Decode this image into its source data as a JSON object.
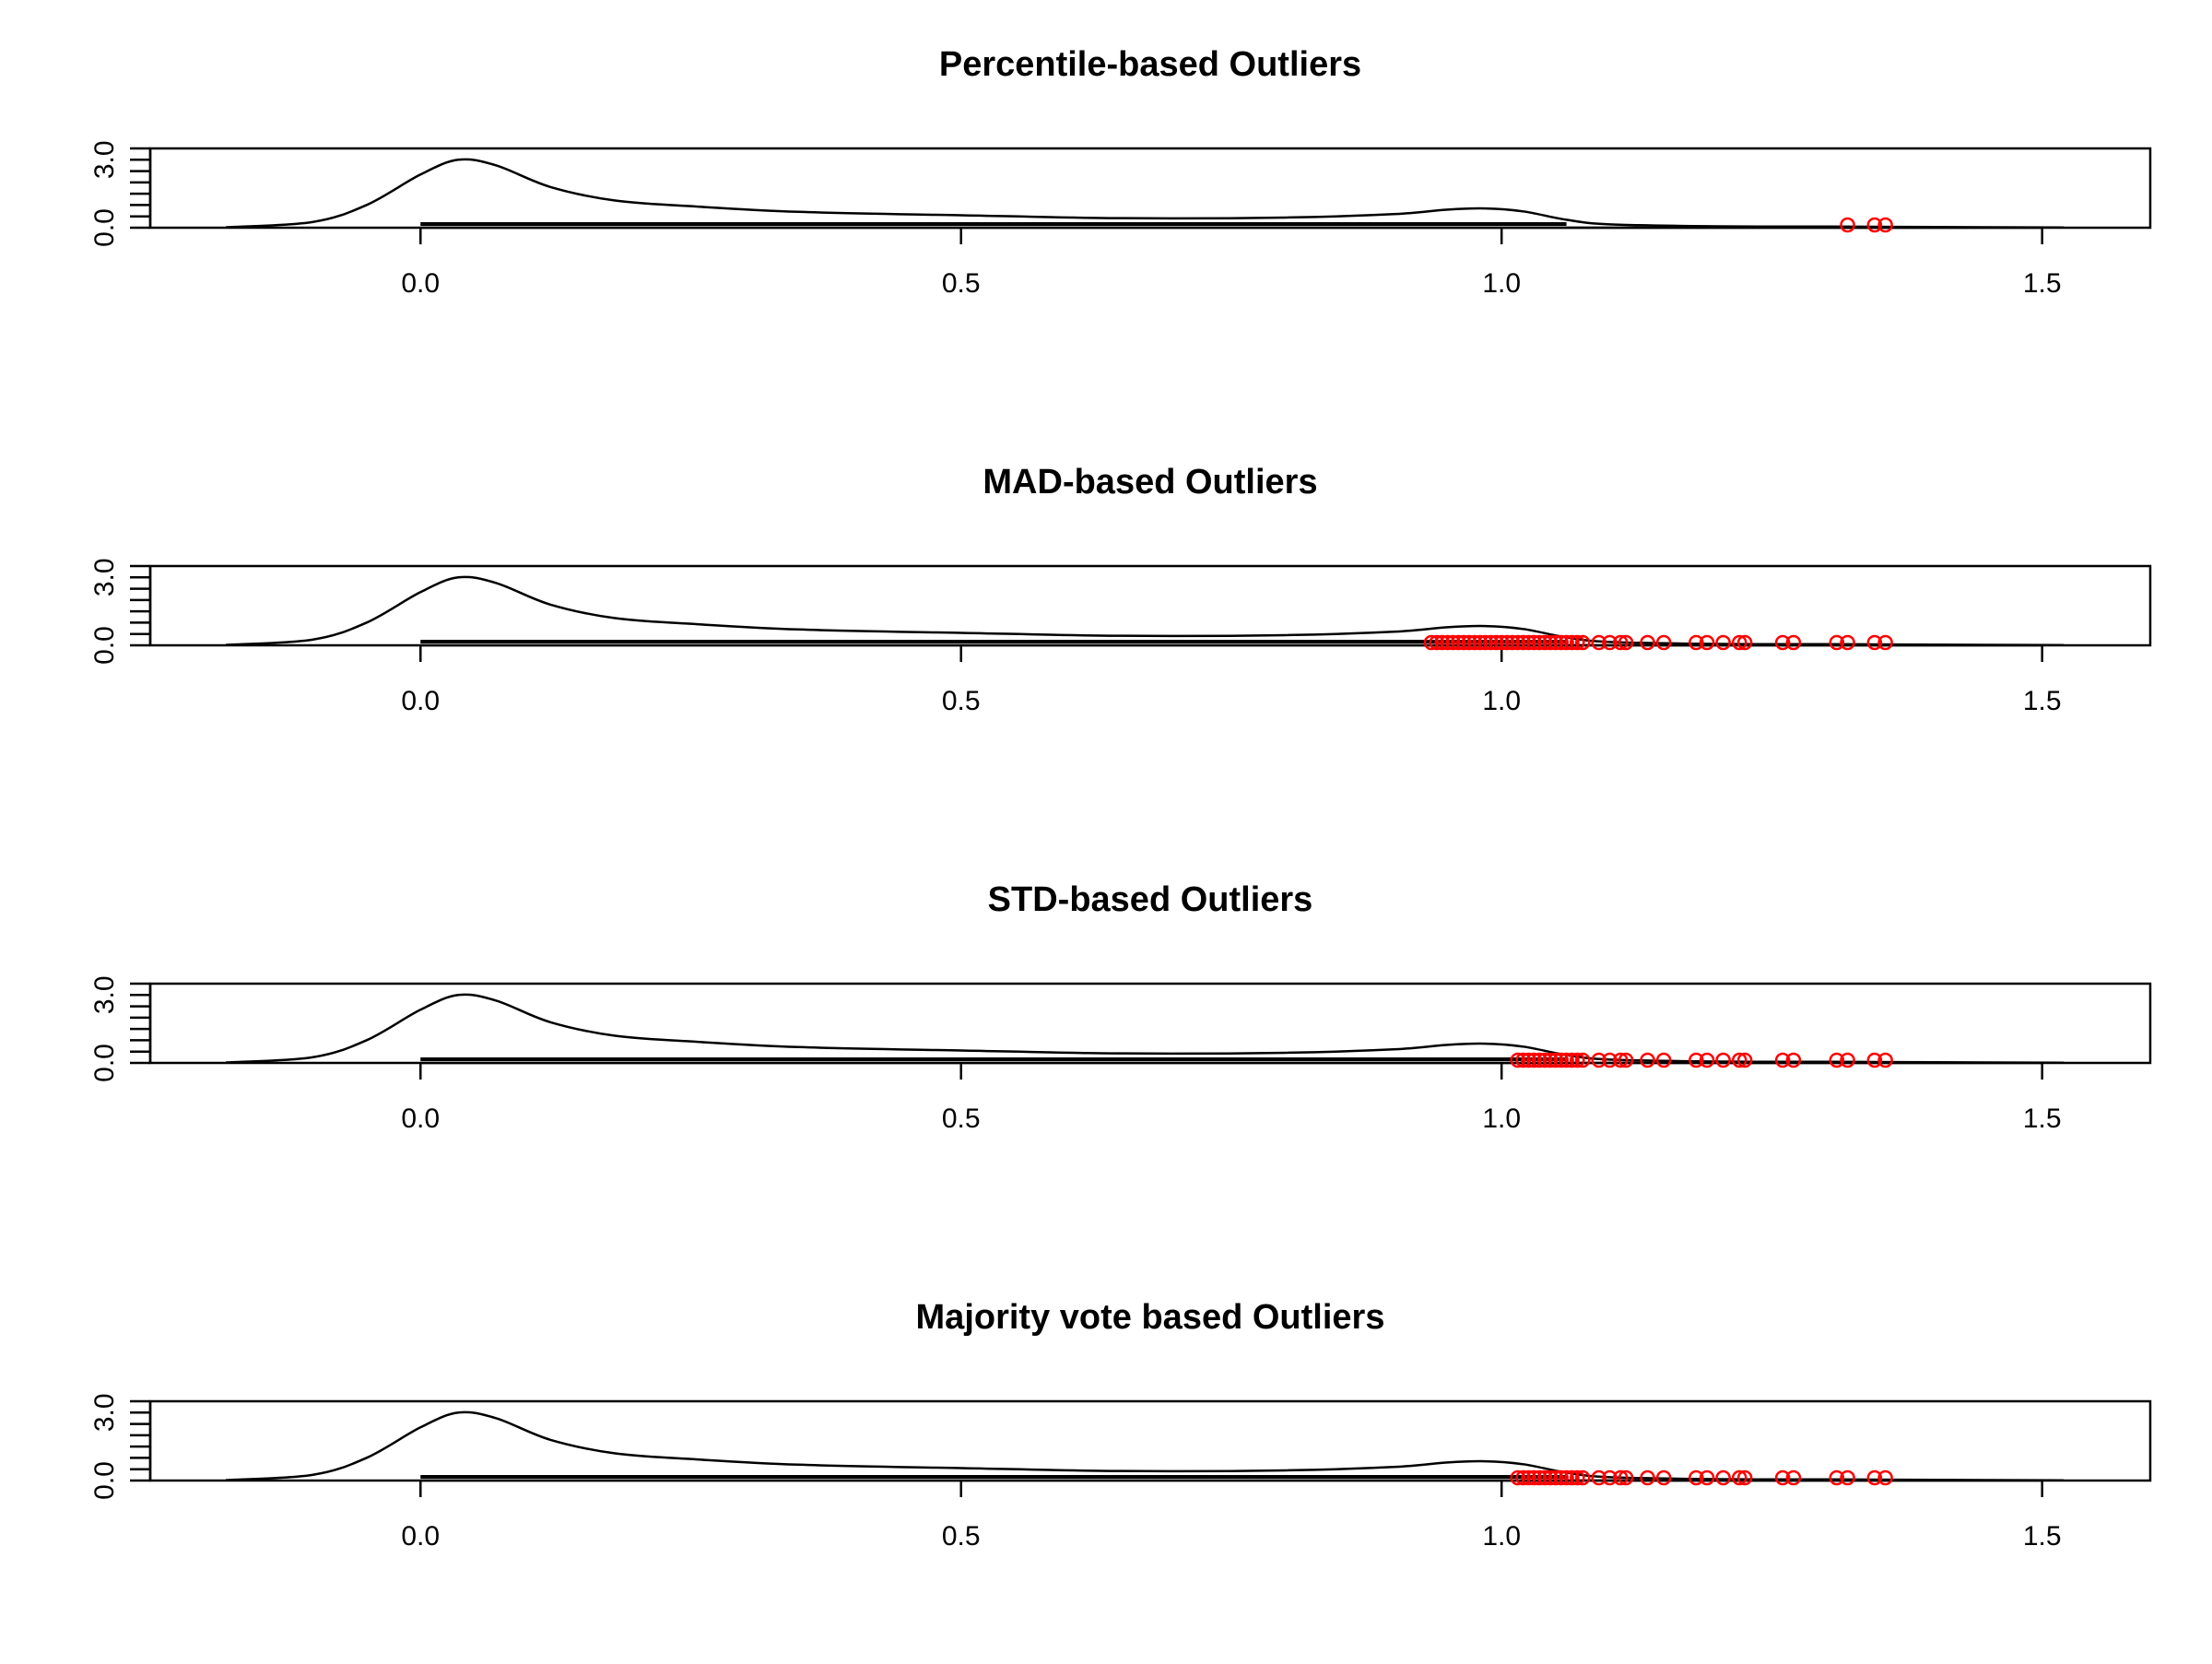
{
  "chart_data": [
    {
      "type": "line",
      "title": "Percentile-based Outliers",
      "xlabel": "",
      "ylabel": "",
      "xlim": [
        -0.25,
        1.6
      ],
      "ylim": [
        0,
        3.5
      ],
      "x_ticks": [
        "0.0",
        "0.5",
        "1.0",
        "1.5"
      ],
      "x_tick_values": [
        0.0,
        0.5,
        1.0,
        1.5
      ],
      "y_ticks": [
        "0.0",
        "3.0"
      ],
      "y_tick_values": [
        0.0,
        3.0
      ],
      "y_minor_ticks": [
        0.5,
        1.0,
        1.5,
        2.0,
        2.5,
        3.5
      ],
      "series": [
        {
          "kind": "density-line",
          "color": "#000000",
          "x": [
            -0.18,
            -0.1,
            -0.05,
            0.0,
            0.035,
            0.07,
            0.12,
            0.18,
            0.25,
            0.35,
            0.5,
            0.65,
            0.8,
            0.9,
            0.95,
            0.985,
            1.02,
            1.06,
            1.1,
            1.2,
            1.3,
            1.4,
            1.52
          ],
          "y": [
            0.02,
            0.25,
            1.0,
            2.35,
            3.0,
            2.75,
            1.8,
            1.2,
            0.95,
            0.7,
            0.55,
            0.42,
            0.45,
            0.6,
            0.8,
            0.85,
            0.72,
            0.35,
            0.15,
            0.06,
            0.05,
            0.03,
            0.01
          ]
        },
        {
          "kind": "outlier-points",
          "color": "#ff0000",
          "x": [
            1.32,
            1.345,
            1.355
          ],
          "y": [
            0,
            0,
            0
          ]
        }
      ]
    },
    {
      "type": "line",
      "title": "MAD-based Outliers",
      "xlabel": "",
      "ylabel": "",
      "xlim": [
        -0.25,
        1.6
      ],
      "ylim": [
        0,
        3.5
      ],
      "x_ticks": [
        "0.0",
        "0.5",
        "1.0",
        "1.5"
      ],
      "x_tick_values": [
        0.0,
        0.5,
        1.0,
        1.5
      ],
      "y_ticks": [
        "0.0",
        "3.0"
      ],
      "y_tick_values": [
        0.0,
        3.0
      ],
      "y_minor_ticks": [
        0.5,
        1.0,
        1.5,
        2.0,
        2.5,
        3.5
      ],
      "series": [
        {
          "kind": "density-line",
          "color": "#000000",
          "x": [
            -0.18,
            -0.1,
            -0.05,
            0.0,
            0.035,
            0.07,
            0.12,
            0.18,
            0.25,
            0.35,
            0.5,
            0.65,
            0.8,
            0.9,
            0.95,
            0.985,
            1.02,
            1.06,
            1.1,
            1.2,
            1.3,
            1.4,
            1.52
          ],
          "y": [
            0.02,
            0.25,
            1.0,
            2.35,
            3.0,
            2.75,
            1.8,
            1.2,
            0.95,
            0.7,
            0.55,
            0.42,
            0.45,
            0.6,
            0.8,
            0.85,
            0.72,
            0.35,
            0.15,
            0.06,
            0.05,
            0.03,
            0.01
          ]
        },
        {
          "kind": "outlier-points",
          "color": "#ff0000",
          "x": [
            0.935,
            0.94,
            0.945,
            0.95,
            0.955,
            0.96,
            0.965,
            0.97,
            0.975,
            0.98,
            0.985,
            0.99,
            0.995,
            1.0,
            1.005,
            1.01,
            1.015,
            1.02,
            1.025,
            1.03,
            1.035,
            1.04,
            1.045,
            1.05,
            1.055,
            1.06,
            1.065,
            1.07,
            1.075,
            1.09,
            1.1,
            1.11,
            1.115,
            1.135,
            1.15,
            1.18,
            1.19,
            1.205,
            1.22,
            1.225,
            1.26,
            1.27,
            1.31,
            1.32,
            1.345,
            1.355
          ],
          "y": [
            0,
            0,
            0,
            0,
            0,
            0,
            0,
            0,
            0,
            0,
            0,
            0,
            0,
            0,
            0,
            0,
            0,
            0,
            0,
            0,
            0,
            0,
            0,
            0,
            0,
            0,
            0,
            0,
            0,
            0,
            0,
            0,
            0,
            0,
            0,
            0,
            0,
            0,
            0,
            0,
            0,
            0,
            0,
            0,
            0,
            0
          ]
        }
      ]
    },
    {
      "type": "line",
      "title": "STD-based Outliers",
      "xlabel": "",
      "ylabel": "",
      "xlim": [
        -0.25,
        1.6
      ],
      "ylim": [
        0,
        3.5
      ],
      "x_ticks": [
        "0.0",
        "0.5",
        "1.0",
        "1.5"
      ],
      "x_tick_values": [
        0.0,
        0.5,
        1.0,
        1.5
      ],
      "y_ticks": [
        "0.0",
        "3.0"
      ],
      "y_tick_values": [
        0.0,
        3.0
      ],
      "y_minor_ticks": [
        0.5,
        1.0,
        1.5,
        2.0,
        2.5,
        3.5
      ],
      "series": [
        {
          "kind": "density-line",
          "color": "#000000",
          "x": [
            -0.18,
            -0.1,
            -0.05,
            0.0,
            0.035,
            0.07,
            0.12,
            0.18,
            0.25,
            0.35,
            0.5,
            0.65,
            0.8,
            0.9,
            0.95,
            0.985,
            1.02,
            1.06,
            1.1,
            1.2,
            1.3,
            1.4,
            1.52
          ],
          "y": [
            0.02,
            0.25,
            1.0,
            2.35,
            3.0,
            2.75,
            1.8,
            1.2,
            0.95,
            0.7,
            0.55,
            0.42,
            0.45,
            0.6,
            0.8,
            0.85,
            0.72,
            0.35,
            0.15,
            0.06,
            0.05,
            0.03,
            0.01
          ]
        },
        {
          "kind": "outlier-points",
          "color": "#ff0000",
          "x": [
            1.015,
            1.02,
            1.025,
            1.03,
            1.035,
            1.04,
            1.045,
            1.05,
            1.055,
            1.06,
            1.065,
            1.07,
            1.075,
            1.09,
            1.1,
            1.11,
            1.115,
            1.135,
            1.15,
            1.18,
            1.19,
            1.205,
            1.22,
            1.225,
            1.26,
            1.27,
            1.31,
            1.32,
            1.345,
            1.355
          ],
          "y": [
            0,
            0,
            0,
            0,
            0,
            0,
            0,
            0,
            0,
            0,
            0,
            0,
            0,
            0,
            0,
            0,
            0,
            0,
            0,
            0,
            0,
            0,
            0,
            0,
            0,
            0,
            0,
            0,
            0,
            0
          ]
        }
      ]
    },
    {
      "type": "line",
      "title": "Majority vote based Outliers",
      "xlabel": "",
      "ylabel": "",
      "xlim": [
        -0.25,
        1.6
      ],
      "ylim": [
        0,
        3.5
      ],
      "x_ticks": [
        "0.0",
        "0.5",
        "1.0",
        "1.5"
      ],
      "x_tick_values": [
        0.0,
        0.5,
        1.0,
        1.5
      ],
      "y_ticks": [
        "0.0",
        "3.0"
      ],
      "y_tick_values": [
        0.0,
        3.0
      ],
      "y_minor_ticks": [
        0.5,
        1.0,
        1.5,
        2.0,
        2.5,
        3.5
      ],
      "series": [
        {
          "kind": "density-line",
          "color": "#000000",
          "x": [
            -0.18,
            -0.1,
            -0.05,
            0.0,
            0.035,
            0.07,
            0.12,
            0.18,
            0.25,
            0.35,
            0.5,
            0.65,
            0.8,
            0.9,
            0.95,
            0.985,
            1.02,
            1.06,
            1.1,
            1.2,
            1.3,
            1.4,
            1.52
          ],
          "y": [
            0.02,
            0.25,
            1.0,
            2.35,
            3.0,
            2.75,
            1.8,
            1.2,
            0.95,
            0.7,
            0.55,
            0.42,
            0.45,
            0.6,
            0.8,
            0.85,
            0.72,
            0.35,
            0.15,
            0.06,
            0.05,
            0.03,
            0.01
          ]
        },
        {
          "kind": "outlier-points",
          "color": "#ff0000",
          "x": [
            1.015,
            1.02,
            1.025,
            1.03,
            1.035,
            1.04,
            1.045,
            1.05,
            1.055,
            1.06,
            1.065,
            1.07,
            1.075,
            1.09,
            1.1,
            1.11,
            1.115,
            1.135,
            1.15,
            1.18,
            1.19,
            1.205,
            1.22,
            1.225,
            1.26,
            1.27,
            1.31,
            1.32,
            1.345,
            1.355
          ],
          "y": [
            0,
            0,
            0,
            0,
            0,
            0,
            0,
            0,
            0,
            0,
            0,
            0,
            0,
            0,
            0,
            0,
            0,
            0,
            0,
            0,
            0,
            0,
            0,
            0,
            0,
            0,
            0,
            0,
            0,
            0
          ]
        }
      ]
    }
  ]
}
